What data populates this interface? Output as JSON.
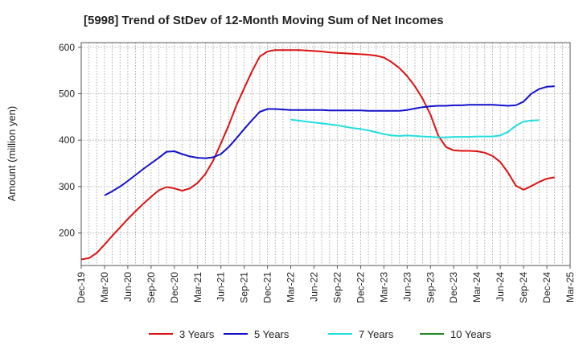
{
  "chart_data": {
    "type": "line",
    "title": "[5998]  Trend of StDev of 12-Month Moving Sum of Net Incomes",
    "ylabel": "Amount (million yen)",
    "xlabel": "",
    "ylim": [
      130,
      610
    ],
    "yticks": [
      200,
      300,
      400,
      500,
      600
    ],
    "x_tick_labels": [
      "Dec-19",
      "Mar-20",
      "Jun-20",
      "Sep-20",
      "Dec-20",
      "Mar-21",
      "Jun-21",
      "Sep-21",
      "Dec-21",
      "Mar-22",
      "Jun-22",
      "Sep-22",
      "Dec-22",
      "Mar-23",
      "Jun-23",
      "Sep-23",
      "Dec-23",
      "Mar-24",
      "Jun-24",
      "Sep-24",
      "Dec-24",
      "Mar-25"
    ],
    "grid": true,
    "legend_position": "bottom",
    "series": [
      {
        "name": "3 Years",
        "color": "#dd1111",
        "start": "Dec-19",
        "values": [
          143,
          146,
          157,
          175,
          194,
          212,
          230,
          247,
          263,
          278,
          292,
          299,
          296,
          291,
          296,
          308,
          327,
          356,
          393,
          432,
          475,
          512,
          548,
          580,
          591,
          594,
          594,
          594,
          594,
          593,
          592,
          591,
          589,
          588,
          587,
          586,
          585,
          584,
          582,
          578,
          568,
          555,
          538,
          516,
          489,
          455,
          410,
          385,
          378,
          377,
          377,
          376,
          373,
          366,
          353,
          330,
          302,
          293,
          301,
          310,
          317,
          320
        ]
      },
      {
        "name": "5 Years",
        "color": "#1111cc",
        "start": "Mar-20",
        "values": [
          281,
          290,
          300,
          312,
          325,
          338,
          350,
          362,
          375,
          376,
          370,
          365,
          362,
          361,
          363,
          370,
          385,
          404,
          424,
          443,
          461,
          467,
          467,
          466,
          465,
          465,
          465,
          465,
          465,
          464,
          464,
          464,
          464,
          464,
          463,
          463,
          463,
          463,
          463,
          465,
          468,
          471,
          473,
          474,
          474,
          475,
          475,
          476,
          476,
          476,
          476,
          475,
          474,
          475,
          483,
          500,
          510,
          515,
          516
        ]
      },
      {
        "name": "7 Years",
        "color": "#22dddd",
        "start": "Mar-22",
        "values": [
          444,
          442,
          440,
          438,
          436,
          434,
          432,
          429,
          426,
          424,
          421,
          417,
          413,
          410,
          409,
          410,
          409,
          408,
          407,
          406,
          406,
          407,
          407,
          407,
          408,
          408,
          408,
          410,
          418,
          431,
          440,
          442,
          443
        ]
      },
      {
        "name": "10 Years",
        "color": "#228822",
        "start": "Mar-22",
        "values": []
      }
    ]
  }
}
